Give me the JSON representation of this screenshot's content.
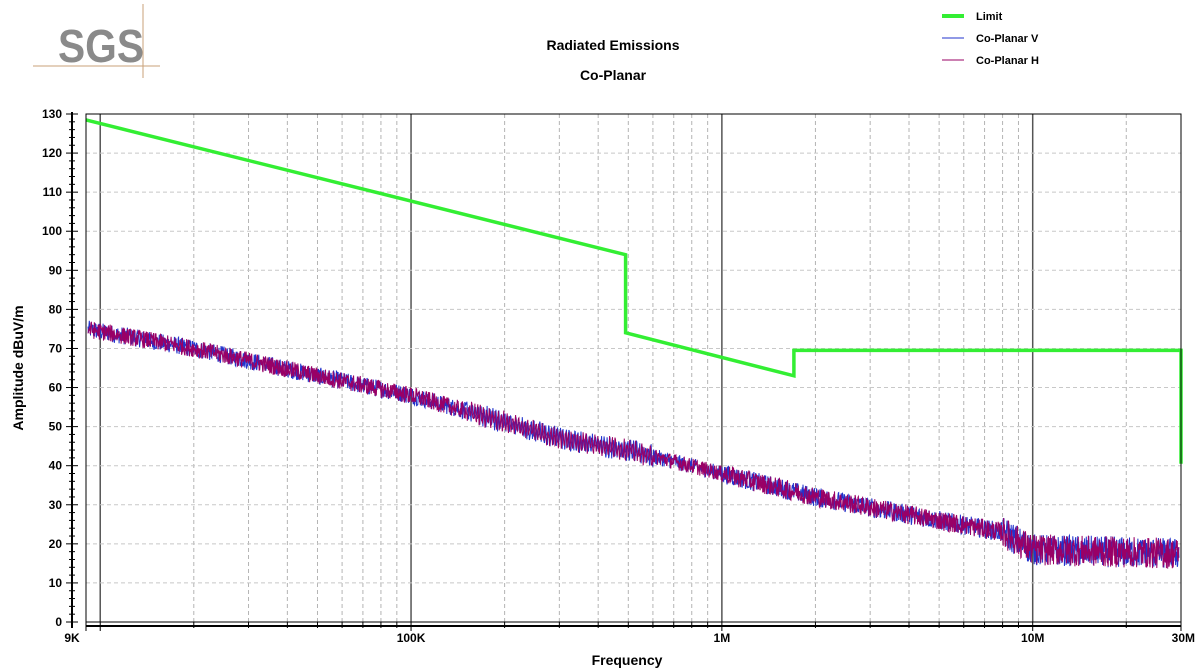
{
  "logo": {
    "text": "SGS",
    "line_color": "#c8a27a"
  },
  "header": {
    "title": "Radiated Emissions",
    "subtitle": "Co-Planar"
  },
  "chart_data": {
    "type": "line",
    "title": "Radiated Emissions",
    "subtitle": "Co-Planar",
    "xlabel": "Frequency",
    "ylabel": "Amplitude dBuV/m",
    "x_scale": "log",
    "x_unit": "Hz",
    "xlim": [
      9000,
      30000000
    ],
    "ylim": [
      0,
      130
    ],
    "x_ticks": [
      {
        "value": 9000,
        "label": "9K"
      },
      {
        "value": 100000,
        "label": "100K"
      },
      {
        "value": 1000000,
        "label": "1M"
      },
      {
        "value": 10000000,
        "label": "10M"
      },
      {
        "value": 30000000,
        "label": "30M"
      }
    ],
    "y_ticks": [
      0,
      10,
      20,
      30,
      40,
      50,
      60,
      70,
      80,
      90,
      100,
      110,
      120,
      130
    ],
    "grid": true,
    "legend_position": "top-right",
    "series": [
      {
        "name": "Limit",
        "color": "#33ee33",
        "points": [
          [
            9000,
            128.5
          ],
          [
            490000,
            94
          ],
          [
            490000,
            74
          ],
          [
            1705000,
            63
          ],
          [
            1705000,
            69.5
          ],
          [
            30000000,
            69.5
          ],
          [
            30000000,
            40.5
          ]
        ]
      },
      {
        "name": "Co-Planar V",
        "color": "#2233cc",
        "trend": [
          [
            9000,
            75
          ],
          [
            20000,
            70
          ],
          [
            50000,
            63
          ],
          [
            100000,
            58
          ],
          [
            150000,
            54
          ],
          [
            300000,
            47
          ],
          [
            500000,
            44
          ],
          [
            1000000,
            38
          ],
          [
            2000000,
            32
          ],
          [
            5000000,
            26
          ],
          [
            8000000,
            23
          ],
          [
            10000000,
            18.5
          ],
          [
            30000000,
            17.5
          ]
        ]
      },
      {
        "name": "Co-Planar H",
        "color": "#990066",
        "trend": [
          [
            9000,
            75
          ],
          [
            20000,
            70
          ],
          [
            50000,
            63
          ],
          [
            100000,
            58
          ],
          [
            150000,
            54
          ],
          [
            300000,
            47
          ],
          [
            500000,
            44
          ],
          [
            1000000,
            38
          ],
          [
            2000000,
            32
          ],
          [
            5000000,
            26
          ],
          [
            8000000,
            23
          ],
          [
            10000000,
            18.5
          ],
          [
            30000000,
            17.5
          ]
        ]
      }
    ]
  }
}
